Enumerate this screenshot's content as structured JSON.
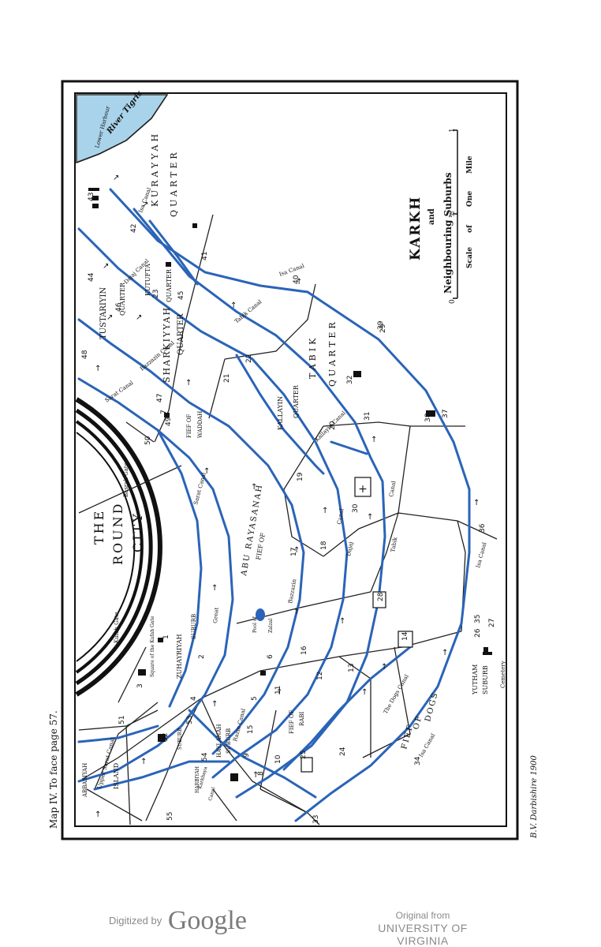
{
  "caption": "Map IV. To face page 57.",
  "signature": "B.V. Darbishire 1900",
  "map": {
    "title": "KARKH",
    "subtitle_and": "and",
    "subtitle": "Neighbouring Suburbs",
    "scale": {
      "label_left": "Scale",
      "label_of": "of",
      "label_one": "One",
      "label_mile": "Mile",
      "tick0": "0",
      "tick_half": "½",
      "tick1": "1"
    },
    "labels": {
      "round_city_1": "THE",
      "round_city_2": "ROUND",
      "round_city_3": "CITY",
      "basrah_gate": "Basrah Gate",
      "kufah_gate": "Kufah Gate",
      "square_kufah": "Square of the Kufah Gate",
      "river_tigris": "River Tigris",
      "lower_harbour": "Lower Harbour",
      "kurayyah": "KURAYYAH",
      "kurayyah_quarter": "QUARTER",
      "tustariyin": "TUSTARIYIN",
      "tustariyin_quarter": "QUARTER",
      "kutufta": "KUTUFTA",
      "kutufta_quarter": "QUARTER",
      "sharkiyyah": "SHARKIYYAH",
      "sharkiyyah_quarter": "QUARTER",
      "tabik_quarter_1": "TABIK",
      "tabik_quarter_2": "QUARTER",
      "kallayin_quarter_1": "KALLAYIN",
      "kallayin_quarter_2": "QUARTER",
      "fief_waddah_1": "FIEF OF",
      "fief_waddah_2": "WADDAH",
      "abu_rayasanah": "ABU RAYASANAH",
      "fief_of": "FIEF OF",
      "pool_zalzal_1": "Pool of",
      "pool_zalzal_2": "Zalzal",
      "zuhayriyah": "ZUHAYRIYAH",
      "zuhayriyah_suburb": "SUBURB",
      "haylanah": "HAYLANAH",
      "haylanah_suburb": "SUBURB",
      "fief_rabi_1": "FIEF OF",
      "fief_rabi_2": "RABI",
      "fief_dogs_1": "FIEF",
      "fief_dogs_2": "OF",
      "fief_dogs_3": "DOGS",
      "yutham": "YUTHAM",
      "yutham_suburb": "SUBURB",
      "cemetery": "Cemetery",
      "abbasiyah": "ABBASIYAH",
      "island": "ISLAND",
      "harbiyah": "HARBIYAH",
      "harbiyah_suburb": "SUBURB",
      "isa_canal_1": "Isa Canal",
      "isa_canal_2": "Isa Canal",
      "isa_canal_3": "Isa Canal",
      "isa_canal_4": "Isa Canal",
      "dajaj_canal_1": "Dajaj Canal",
      "dajaj_canal_2": "Dajaj",
      "dajaj_canal_3": "Canal",
      "tabik_canal_1": "Tabik Canal",
      "tabik_canal_2": "Tabik",
      "tabik_canal_3": "Canal",
      "kallayin_canal": "Kallayin Canal",
      "bazzazin_canal_1": "Bazzazin Canal",
      "bazzazin_canal_2": "Bazzazin",
      "sarat_canal_1": "Sarat Canal",
      "sarat_canal_2": "Sarat Canal",
      "sarat_canal_3": "Sarat",
      "great_sarat": "Great",
      "razin_canal": "Razin Canal",
      "karkhaya_canal_1": "Karkhaya",
      "karkhaya_canal_2": "Canal",
      "upper_sarat": "Upper Sarat Canal",
      "dogs_canal": "The Dogs Canal",
      "isa_canal_5": "Isa Canal",
      "canal_1": "Canal",
      "canal_2": "Canal",
      "canal_3": "Canal"
    },
    "numbers": [
      "1",
      "2",
      "3",
      "4",
      "5",
      "6",
      "7",
      "8",
      "9",
      "10",
      "11",
      "12",
      "13",
      "14",
      "15",
      "16",
      "17",
      "18",
      "19",
      "20",
      "21",
      "22",
      "23",
      "24",
      "25",
      "26",
      "27",
      "28",
      "29",
      "30",
      "31",
      "32",
      "33",
      "34",
      "35",
      "36",
      "37",
      "38",
      "39",
      "40",
      "41",
      "42",
      "43",
      "44",
      "45",
      "46",
      "47",
      "48",
      "49",
      "50",
      "51",
      "52",
      "53",
      "54",
      "55"
    ]
  },
  "footer": {
    "digitized": "Digitized by",
    "google": "Google",
    "original_from": "Original from",
    "university": "UNIVERSITY OF VIRGINIA"
  },
  "colors": {
    "canal": "#2a64b8",
    "river": "#a9d3ea",
    "ink": "#111111",
    "frame": "#111111"
  }
}
